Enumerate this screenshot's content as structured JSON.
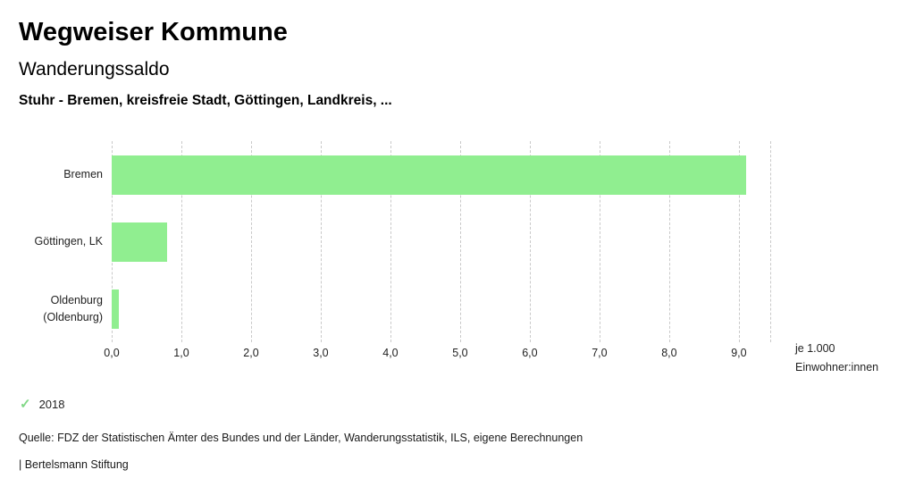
{
  "header": {
    "app_title": "Wegweiser Kommune",
    "chart_title": "Wanderungssaldo",
    "chart_subtitle": "Stuhr - Bremen, kreisfreie Stadt, Göttingen, Landkreis, ..."
  },
  "chart_data": {
    "type": "bar",
    "orientation": "horizontal",
    "title": "Wanderungssaldo",
    "subtitle": "Stuhr - Bremen, kreisfreie Stadt, Göttingen, Landkreis, ...",
    "categories": [
      "Bremen",
      "Göttingen, LK",
      "Oldenburg (Oldenburg)"
    ],
    "series": [
      {
        "name": "2018",
        "values": [
          9.1,
          0.8,
          0.1
        ]
      }
    ],
    "xlabel": "je 1.000 Einwohner:innen",
    "unit_label_lines": [
      "je 1.000",
      "Einwohner:innen"
    ],
    "xlim": [
      0,
      9.45
    ],
    "xticks": [
      0,
      1,
      2,
      3,
      4,
      5,
      6,
      7,
      8,
      9
    ],
    "xtick_labels": [
      "0,0",
      "1,0",
      "2,0",
      "3,0",
      "4,0",
      "5,0",
      "6,0",
      "7,0",
      "8,0",
      "9,0"
    ],
    "grid": "vertical-dashed",
    "legend_position": "bottom-left",
    "bar_color": "#90ee90"
  },
  "legend": {
    "check_icon": "✓",
    "check_color": "#82d887",
    "year_label": "2018"
  },
  "footer": {
    "source": "Quelle: FDZ der Statistischen Ämter des Bundes und der Länder, Wanderungsstatistik, ILS, eigene Berechnungen",
    "branding": "| Bertelsmann Stiftung"
  }
}
